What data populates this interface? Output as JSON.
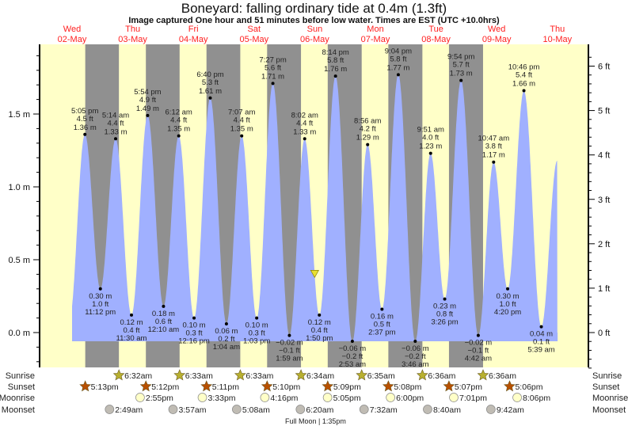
{
  "chart_data": {
    "type": "area",
    "title": "Boneyard: falling  ordinary tide at 0.4m (1.3ft)",
    "subtitle": "Image captured One hour and 51 minutes before low water. Times are EST (UTC +10.0hrs)",
    "ylabel_left_unit": "m",
    "ylabel_right_unit": "ft",
    "ylim_m": [
      -0.24,
      1.98
    ],
    "left_ticks": [
      "0.0 m",
      "0.5 m",
      "1.0 m",
      "1.5 m"
    ],
    "right_ticks": [
      "0 ft",
      "1 ft",
      "2 ft",
      "3 ft",
      "4 ft",
      "5 ft",
      "6 ft"
    ],
    "days": [
      {
        "weekday": "Wed",
        "date": "02-May"
      },
      {
        "weekday": "Thu",
        "date": "03-May"
      },
      {
        "weekday": "Fri",
        "date": "04-May"
      },
      {
        "weekday": "Sat",
        "date": "05-May"
      },
      {
        "weekday": "Sun",
        "date": "06-May"
      },
      {
        "weekday": "Mon",
        "date": "07-May"
      },
      {
        "weekday": "Tue",
        "date": "08-May"
      },
      {
        "weekday": "Wed",
        "date": "09-May"
      },
      {
        "weekday": "Thu",
        "date": "10-May"
      }
    ],
    "tides": [
      {
        "type": "high",
        "date": "02-May",
        "time": "5:05 pm",
        "ft": "4.5 ft",
        "m": 1.36,
        "m_label": "1.36 m"
      },
      {
        "type": "low",
        "date": "02-May",
        "time": "11:12 pm",
        "ft": "1.0 ft",
        "m": 0.3,
        "m_label": "0.30 m"
      },
      {
        "type": "high",
        "date": "03-May",
        "time": "5:14 am",
        "ft": "4.4 ft",
        "m": 1.33,
        "m_label": "1.33 m"
      },
      {
        "type": "low",
        "date": "03-May",
        "time": "11:30 am",
        "ft": "0.4 ft",
        "m": 0.12,
        "m_label": "0.12 m"
      },
      {
        "type": "high",
        "date": "03-May",
        "time": "5:54 pm",
        "ft": "4.9 ft",
        "m": 1.49,
        "m_label": "1.49 m"
      },
      {
        "type": "low",
        "date": "04-May",
        "time": "12:10 am",
        "ft": "0.6 ft",
        "m": 0.18,
        "m_label": "0.18 m"
      },
      {
        "type": "high",
        "date": "04-May",
        "time": "6:12 am",
        "ft": "4.4 ft",
        "m": 1.35,
        "m_label": "1.35 m"
      },
      {
        "type": "low",
        "date": "04-May",
        "time": "12:16 pm",
        "ft": "0.3 ft",
        "m": 0.1,
        "m_label": "0.10 m"
      },
      {
        "type": "high",
        "date": "04-May",
        "time": "6:40 pm",
        "ft": "5.3 ft",
        "m": 1.61,
        "m_label": "1.61 m"
      },
      {
        "type": "low",
        "date": "05-May",
        "time": "1:04 am",
        "ft": "0.2 ft",
        "m": 0.06,
        "m_label": "0.06 m"
      },
      {
        "type": "high",
        "date": "05-May",
        "time": "7:07 am",
        "ft": "4.4 ft",
        "m": 1.35,
        "m_label": "1.35 m"
      },
      {
        "type": "low",
        "date": "05-May",
        "time": "1:03 pm",
        "ft": "0.3 ft",
        "m": 0.1,
        "m_label": "0.10 m"
      },
      {
        "type": "high",
        "date": "05-May",
        "time": "7:27 pm",
        "ft": "5.6 ft",
        "m": 1.71,
        "m_label": "1.71 m"
      },
      {
        "type": "low",
        "date": "06-May",
        "time": "1:59 am",
        "ft": "−0.1 ft",
        "m": -0.02,
        "m_label": "−0.02 m"
      },
      {
        "type": "high",
        "date": "06-May",
        "time": "8:02 am",
        "ft": "4.4 ft",
        "m": 1.33,
        "m_label": "1.33 m"
      },
      {
        "type": "low",
        "date": "06-May",
        "time": "1:50 pm",
        "ft": "0.4 ft",
        "m": 0.12,
        "m_label": "0.12 m"
      },
      {
        "type": "high",
        "date": "06-May",
        "time": "8:14 pm",
        "ft": "5.8 ft",
        "m": 1.76,
        "m_label": "1.76 m"
      },
      {
        "type": "low",
        "date": "07-May",
        "time": "2:53 am",
        "ft": "−0.2 ft",
        "m": -0.06,
        "m_label": "−0.06 m"
      },
      {
        "type": "high",
        "date": "07-May",
        "time": "8:56 am",
        "ft": "4.2 ft",
        "m": 1.29,
        "m_label": "1.29 m"
      },
      {
        "type": "low",
        "date": "07-May",
        "time": "2:37 pm",
        "ft": "0.5 ft",
        "m": 0.16,
        "m_label": "0.16 m"
      },
      {
        "type": "high",
        "date": "07-May",
        "time": "9:04 pm",
        "ft": "5.8 ft",
        "m": 1.77,
        "m_label": "1.77 m"
      },
      {
        "type": "low",
        "date": "08-May",
        "time": "3:46 am",
        "ft": "−0.2 ft",
        "m": -0.06,
        "m_label": "−0.06 m"
      },
      {
        "type": "high",
        "date": "08-May",
        "time": "9:51 am",
        "ft": "4.0 ft",
        "m": 1.23,
        "m_label": "1.23 m"
      },
      {
        "type": "low",
        "date": "08-May",
        "time": "3:26 pm",
        "ft": "0.8 ft",
        "m": 0.23,
        "m_label": "0.23 m"
      },
      {
        "type": "high",
        "date": "08-May",
        "time": "9:54 pm",
        "ft": "5.7 ft",
        "m": 1.73,
        "m_label": "1.73 m"
      },
      {
        "type": "low",
        "date": "09-May",
        "time": "4:42 am",
        "ft": "−0.1 ft",
        "m": -0.02,
        "m_label": "−0.02 m"
      },
      {
        "type": "high",
        "date": "09-May",
        "time": "10:47 am",
        "ft": "3.8 ft",
        "m": 1.17,
        "m_label": "1.17 m"
      },
      {
        "type": "low",
        "date": "09-May",
        "time": "4:20 pm",
        "ft": "1.0 ft",
        "m": 0.3,
        "m_label": "0.30 m"
      },
      {
        "type": "high",
        "date": "09-May",
        "time": "10:46 pm",
        "ft": "5.4 ft",
        "m": 1.66,
        "m_label": "1.66 m"
      },
      {
        "type": "low",
        "date": "10-May",
        "time": "5:39 am",
        "ft": "0.1 ft",
        "m": 0.04,
        "m_label": "0.04 m"
      }
    ],
    "current": {
      "date": "06-May",
      "time": "11:59 am",
      "m": 0.4,
      "state": "falling"
    },
    "rows": {
      "sunrise_label": "Sunrise",
      "sunset_label": "Sunset",
      "moonrise_label": "Moonrise",
      "moonset_label": "Moonset",
      "sunrise": [
        {
          "date": "03-May",
          "time": "6:32am"
        },
        {
          "date": "04-May",
          "time": "6:33am"
        },
        {
          "date": "05-May",
          "time": "6:33am"
        },
        {
          "date": "06-May",
          "time": "6:34am"
        },
        {
          "date": "07-May",
          "time": "6:35am"
        },
        {
          "date": "08-May",
          "time": "6:36am"
        },
        {
          "date": "09-May",
          "time": "6:36am"
        }
      ],
      "sunset": [
        {
          "date": "02-May",
          "time": "5:13pm"
        },
        {
          "date": "03-May",
          "time": "5:12pm"
        },
        {
          "date": "04-May",
          "time": "5:11pm"
        },
        {
          "date": "05-May",
          "time": "5:10pm"
        },
        {
          "date": "06-May",
          "time": "5:09pm"
        },
        {
          "date": "07-May",
          "time": "5:08pm"
        },
        {
          "date": "08-May",
          "time": "5:07pm"
        },
        {
          "date": "09-May",
          "time": "5:06pm"
        }
      ],
      "moonrise": [
        {
          "date": "03-May",
          "time": "2:55pm"
        },
        {
          "date": "04-May",
          "time": "3:33pm"
        },
        {
          "date": "05-May",
          "time": "4:16pm"
        },
        {
          "date": "06-May",
          "time": "5:05pm"
        },
        {
          "date": "07-May",
          "time": "6:00pm"
        },
        {
          "date": "08-May",
          "time": "7:01pm"
        },
        {
          "date": "09-May",
          "time": "8:06pm"
        }
      ],
      "moonset": [
        {
          "date": "03-May",
          "time": "2:49am"
        },
        {
          "date": "04-May",
          "time": "3:57am"
        },
        {
          "date": "05-May",
          "time": "5:08am"
        },
        {
          "date": "06-May",
          "time": "6:20am"
        },
        {
          "date": "07-May",
          "time": "7:32am"
        },
        {
          "date": "08-May",
          "time": "8:40am"
        },
        {
          "date": "09-May",
          "time": "9:42am"
        }
      ],
      "moon_phase": "Full Moon | 1:35pm",
      "moon_phase_date": "06-May",
      "moon_phase_time": "1:35pm"
    },
    "colors": {
      "day": "#ffffc8",
      "night": "#909090",
      "water": "#a0b0ff",
      "date_labels": "#ff2020",
      "sunrise_icon": "#b8b030",
      "sunset_icon": "#b85000",
      "moonrise_icon": "#ffffc8",
      "moonset_icon": "#c0bcb4",
      "current_marker": "#e8e030"
    }
  }
}
